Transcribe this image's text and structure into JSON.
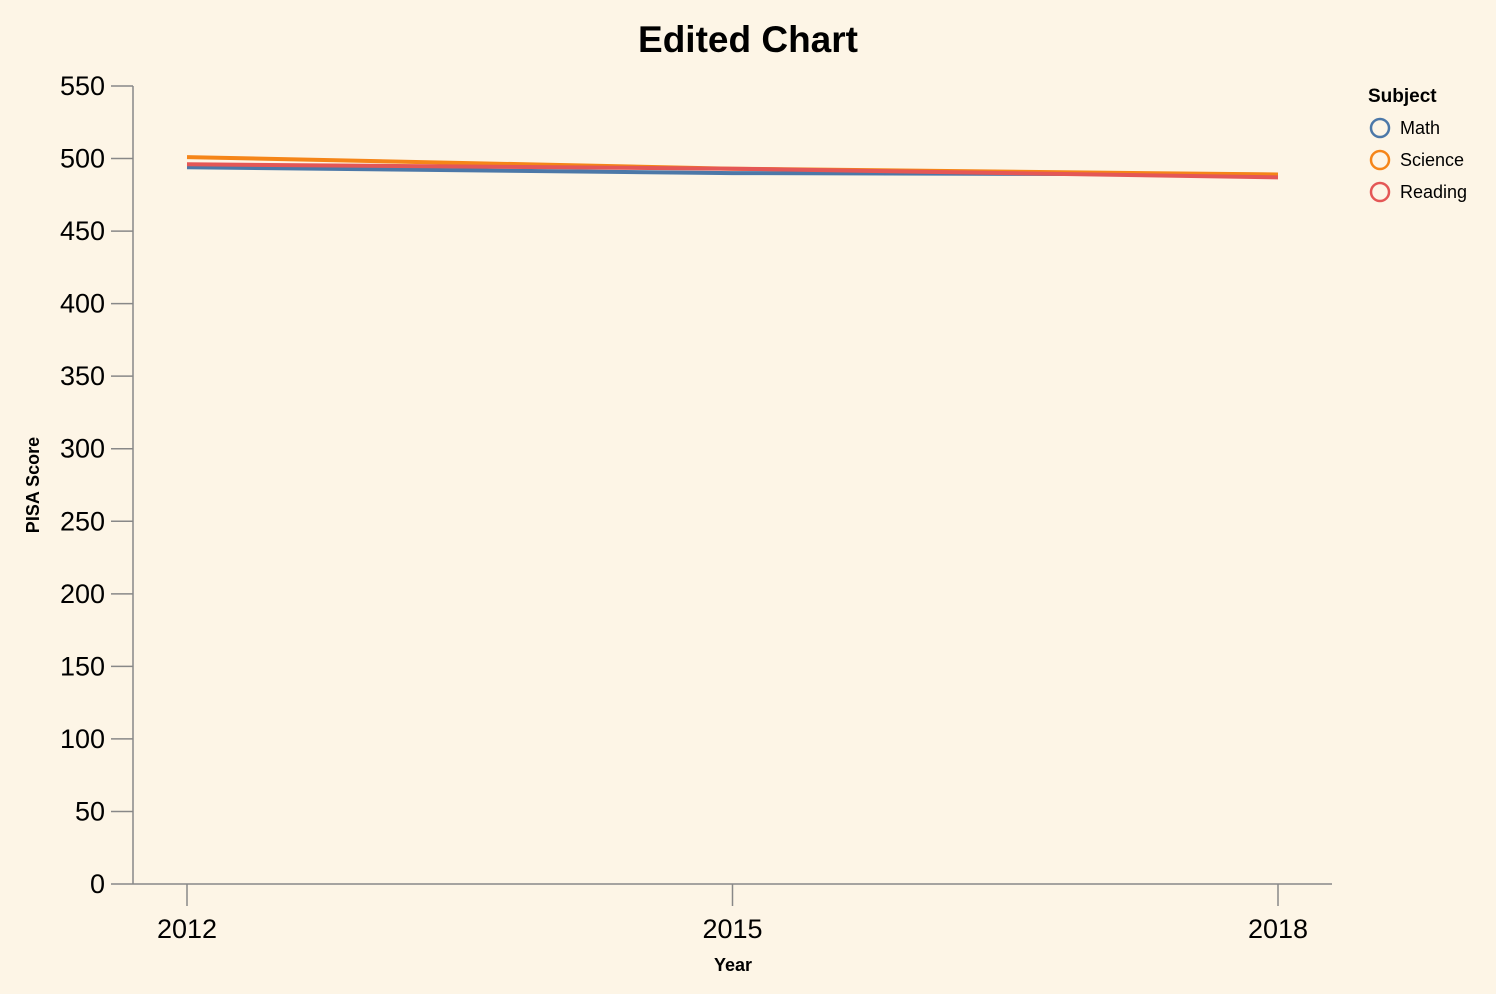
{
  "chart_data": {
    "type": "line",
    "title": "Edited Chart",
    "xlabel": "Year",
    "ylabel": "PISA Score",
    "x": [
      2012,
      2015,
      2018
    ],
    "xticks": [
      "2012",
      "2015",
      "2018"
    ],
    "yticks": [
      0,
      50,
      100,
      150,
      200,
      250,
      300,
      350,
      400,
      450,
      500,
      550
    ],
    "ylim": [
      0,
      550
    ],
    "grid": false,
    "legend": {
      "title": "Subject",
      "placement": "top-right"
    },
    "series": [
      {
        "name": "Math",
        "color": "#4c78a8",
        "values": [
          494,
          490,
          489
        ]
      },
      {
        "name": "Science",
        "color": "#f58518",
        "values": [
          501,
          493,
          489
        ]
      },
      {
        "name": "Reading",
        "color": "#e45756",
        "values": [
          496,
          493,
          487
        ]
      }
    ]
  }
}
